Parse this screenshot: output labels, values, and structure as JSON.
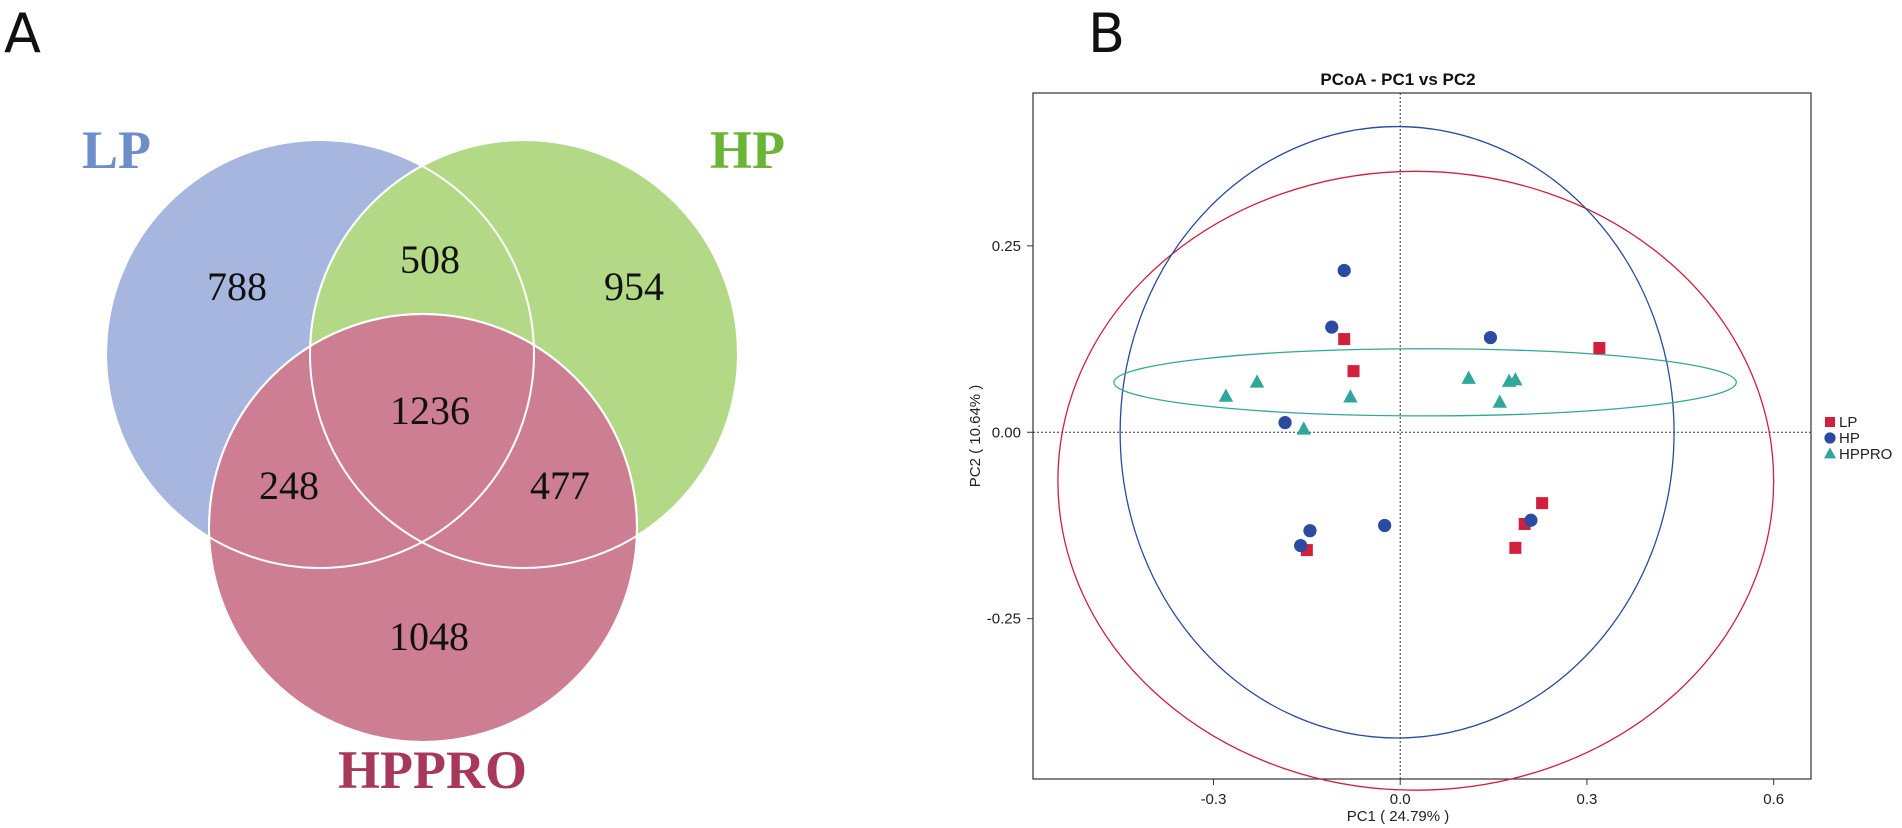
{
  "panels": {
    "a_letter": "A",
    "b_letter": "B"
  },
  "venn": {
    "sets": [
      {
        "name": "LP",
        "color": "#9FB0DD",
        "label_color": "#6C8FCB"
      },
      {
        "name": "HP",
        "color": "#ADD67C",
        "label_color": "#6CB436"
      },
      {
        "name": "HPPRO",
        "color": "#C97489",
        "label_color": "#A8385A"
      }
    ],
    "counts": {
      "lp_only": "788",
      "hp_only": "954",
      "hppro_only": "1048",
      "lp_hp": "508",
      "lp_hppro": "248",
      "hp_hppro": "477",
      "all": "1236"
    }
  },
  "chart_data": {
    "type": "scatter",
    "title": "PCoA - PC1 vs PC2",
    "xlabel": "PC1 ( 24.79% )",
    "ylabel": "PC2 ( 10.64% )",
    "xlim": [
      -0.59,
      0.66
    ],
    "ylim": [
      -0.465,
      0.455
    ],
    "xticks": [
      -0.3,
      0.0,
      0.3,
      0.6
    ],
    "xtick_labels": [
      "-0.3",
      "0.0",
      "0.3",
      "0.6"
    ],
    "yticks": [
      0.25,
      0.0,
      -0.25
    ],
    "ytick_labels": [
      "0.25",
      "0.00",
      "-0.25"
    ],
    "reference_lines": {
      "x": 0,
      "y": 0
    },
    "legend_position": "right",
    "series": [
      {
        "name": "LP",
        "marker": "square",
        "color": "#D21F3C",
        "points": [
          [
            -0.09,
            0.125
          ],
          [
            -0.075,
            0.082
          ],
          [
            0.32,
            0.113
          ],
          [
            -0.15,
            -0.158
          ],
          [
            0.185,
            -0.155
          ],
          [
            0.2,
            -0.123
          ],
          [
            0.228,
            -0.095
          ]
        ],
        "ellipse": {
          "cx": 0.025,
          "cy": -0.065,
          "rx": 0.575,
          "ry": 0.415,
          "angle": 0
        }
      },
      {
        "name": "HP",
        "marker": "circle",
        "color": "#2B4BA0",
        "points": [
          [
            -0.09,
            0.217
          ],
          [
            -0.11,
            0.141
          ],
          [
            0.145,
            0.127
          ],
          [
            -0.185,
            0.013
          ],
          [
            -0.145,
            -0.132
          ],
          [
            -0.16,
            -0.152
          ],
          [
            -0.025,
            -0.125
          ],
          [
            0.21,
            -0.118
          ]
        ],
        "ellipse": {
          "cx": -0.005,
          "cy": 0.0,
          "rx": 0.445,
          "ry": 0.41,
          "angle": 0
        }
      },
      {
        "name": "HPPRO",
        "marker": "triangle",
        "color": "#2FA89B",
        "points": [
          [
            -0.28,
            0.048
          ],
          [
            -0.23,
            0.067
          ],
          [
            -0.155,
            0.004
          ],
          [
            -0.08,
            0.047
          ],
          [
            0.11,
            0.072
          ],
          [
            0.16,
            0.04
          ],
          [
            0.175,
            0.068
          ],
          [
            0.185,
            0.07
          ]
        ],
        "ellipse": {
          "cx": 0.04,
          "cy": 0.067,
          "rx": 0.5,
          "ry": 0.045,
          "angle": 0
        }
      }
    ]
  }
}
